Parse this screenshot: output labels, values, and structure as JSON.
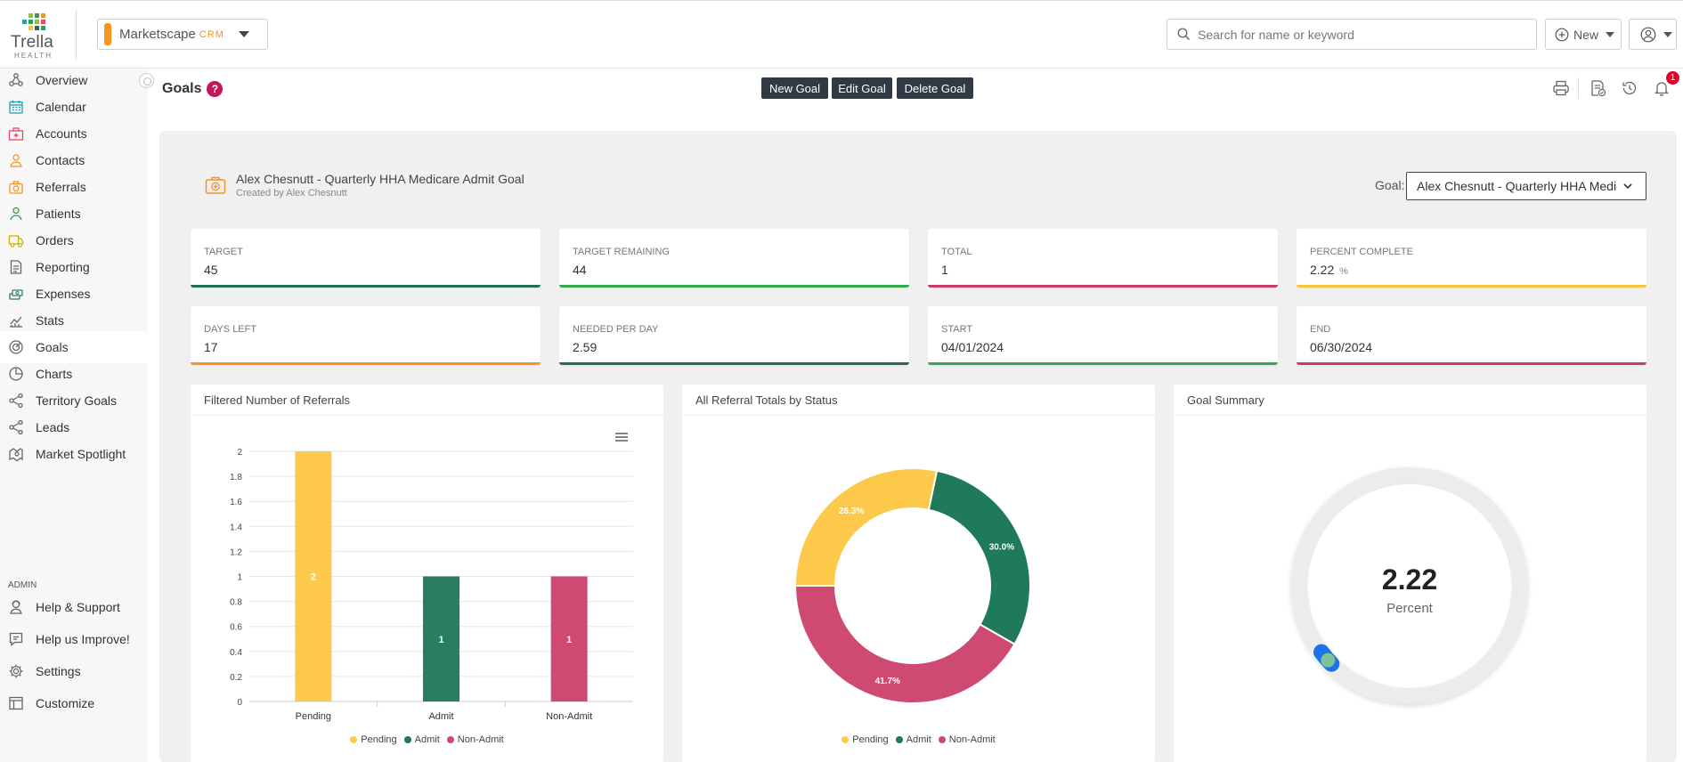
{
  "brand": {
    "logo_text": "Trella",
    "logo_sub": "HEALTH",
    "app_name": "Marketscape",
    "app_suffix": "CRM",
    "accent": "#f7941d"
  },
  "topbar": {
    "search_placeholder": "Search for name or keyword",
    "new_label": "New"
  },
  "sidebar": {
    "items": [
      {
        "label": "Overview",
        "icon": "overview-icon",
        "color": "#666"
      },
      {
        "label": "Calendar",
        "icon": "calendar-icon",
        "color": "#17a2b8"
      },
      {
        "label": "Accounts",
        "icon": "accounts-icon",
        "color": "#e04a6b"
      },
      {
        "label": "Contacts",
        "icon": "contacts-icon",
        "color": "#f7941d"
      },
      {
        "label": "Referrals",
        "icon": "referrals-icon",
        "color": "#f7941d"
      },
      {
        "label": "Patients",
        "icon": "patients-icon",
        "color": "#2e9e4f"
      },
      {
        "label": "Orders",
        "icon": "orders-icon",
        "color": "#c8b400"
      },
      {
        "label": "Reporting",
        "icon": "reporting-icon",
        "color": "#666"
      },
      {
        "label": "Expenses",
        "icon": "expenses-icon",
        "color": "#2e7d55"
      },
      {
        "label": "Stats",
        "icon": "stats-icon",
        "color": "#666"
      },
      {
        "label": "Goals",
        "icon": "goals-icon",
        "color": "#666"
      },
      {
        "label": "Charts",
        "icon": "charts-icon",
        "color": "#666"
      },
      {
        "label": "Territory Goals",
        "icon": "territory-goals-icon",
        "color": "#666"
      },
      {
        "label": "Leads",
        "icon": "leads-icon",
        "color": "#666"
      },
      {
        "label": "Market Spotlight",
        "icon": "market-spotlight-icon",
        "color": "#666"
      }
    ],
    "admin_label": "ADMIN",
    "admin_items": [
      {
        "label": "Help & Support",
        "icon": "help-support-icon"
      },
      {
        "label": "Help us Improve!",
        "icon": "feedback-icon"
      },
      {
        "label": "Settings",
        "icon": "settings-icon"
      },
      {
        "label": "Customize",
        "icon": "customize-icon"
      }
    ]
  },
  "header": {
    "title": "Goals",
    "help": "?",
    "buttons": {
      "new": "New Goal",
      "edit": "Edit Goal",
      "delete": "Delete Goal"
    },
    "notification_count": "1"
  },
  "goal": {
    "title": "Alex Chesnutt - Quarterly HHA Medicare Admit Goal",
    "created_by": "Created by Alex Chesnutt",
    "select_label": "Goal:",
    "select_value": "Alex Chesnutt - Quarterly HHA Medicare Admit Goal"
  },
  "stats": [
    {
      "label": "TARGET",
      "value": "45",
      "unit": "",
      "color": "#1f6f57"
    },
    {
      "label": "TARGET REMAINING",
      "value": "44",
      "unit": "",
      "color": "#34a94a"
    },
    {
      "label": "TOTAL",
      "value": "1",
      "unit": "",
      "color": "#c93a67"
    },
    {
      "label": "PERCENT COMPLETE",
      "value": "2.22",
      "unit": "%",
      "color": "#f3c53a"
    },
    {
      "label": "DAYS LEFT",
      "value": "17",
      "unit": "",
      "color": "#f7941d"
    },
    {
      "label": "NEEDED PER DAY",
      "value": "2.59",
      "unit": "",
      "color": "#1f6f57"
    },
    {
      "label": "START",
      "value": "04/01/2024",
      "unit": "",
      "color": "#34a94a"
    },
    {
      "label": "END",
      "value": "06/30/2024",
      "unit": "",
      "color": "#c93a67"
    }
  ],
  "cards": {
    "bar_title": "Filtered Number of Referrals",
    "donut_title": "All Referral Totals by Status",
    "gauge_title": "Goal Summary"
  },
  "legend": [
    {
      "name": "Pending",
      "color": "#fcc94a"
    },
    {
      "name": "Admit",
      "color": "#1e7a5a"
    },
    {
      "name": "Non-Admit",
      "color": "#cf4a72"
    }
  ],
  "chart_data": [
    {
      "type": "bar",
      "title": "Filtered Number of Referrals",
      "categories": [
        "Pending",
        "Admit",
        "Non-Admit"
      ],
      "values": [
        2,
        1,
        1
      ],
      "colors": [
        "#fcc94a",
        "#2a7d5f",
        "#cf4a72"
      ],
      "ylim": [
        0,
        2
      ],
      "yticks": [
        "0",
        "0.2",
        "0.4",
        "0.6",
        "0.8",
        "1",
        "1.2",
        "1.4",
        "1.6",
        "1.8",
        "2"
      ],
      "data_labels": [
        "2",
        "1",
        "1"
      ],
      "grid": true,
      "legend": "bottom"
    },
    {
      "type": "pie",
      "title": "All Referral Totals by Status",
      "donut": true,
      "slices": [
        {
          "name": "Pending",
          "value": 28.3,
          "label": "28.3%",
          "color": "#fcc94a"
        },
        {
          "name": "Admit",
          "value": 30.0,
          "label": "30.0%",
          "color": "#1e7a5a"
        },
        {
          "name": "Non-Admit",
          "value": 41.7,
          "label": "41.7%",
          "color": "#cf4a72"
        }
      ],
      "legend": "bottom"
    },
    {
      "type": "gauge",
      "title": "Goal Summary",
      "value": 2.22,
      "display_value": "2.22",
      "unit_label": "Percent",
      "max": 100
    }
  ]
}
